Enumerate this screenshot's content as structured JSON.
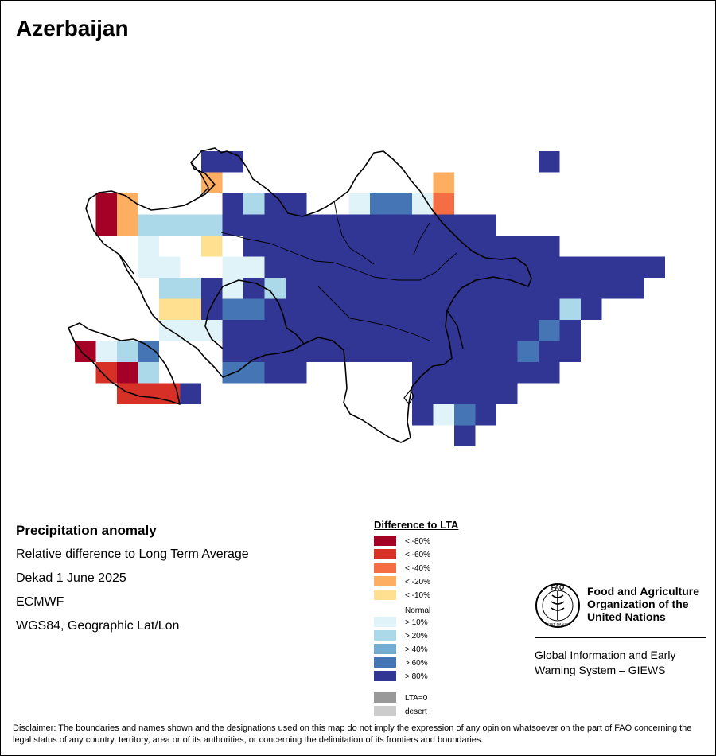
{
  "title": "Azerbaijan",
  "info": {
    "heading": "Precipitation anomaly",
    "line1": "Relative difference to Long Term Average",
    "line2": "Dekad 1 June 2025",
    "line3": "ECMWF",
    "line4": "WGS84, Geographic Lat/Lon"
  },
  "legend": {
    "title": "Difference to LTA",
    "classes": [
      {
        "label": "< -80%",
        "color": "#a50026"
      },
      {
        "label": "< -60%",
        "color": "#d73027"
      },
      {
        "label": "< -40%",
        "color": "#f46d43"
      },
      {
        "label": "< -20%",
        "color": "#fdae61"
      },
      {
        "label": "< -10%",
        "color": "#fee090"
      },
      {
        "label": "Normal",
        "color": "#ffffff"
      },
      {
        "label": "> 10%",
        "color": "#e0f3f8"
      },
      {
        "label": "> 20%",
        "color": "#abd9e9"
      },
      {
        "label": "> 40%",
        "color": "#74add1"
      },
      {
        "label": "> 60%",
        "color": "#4575b4"
      },
      {
        "label": "> 80%",
        "color": "#313695"
      }
    ],
    "extra": [
      {
        "label": "LTA=0",
        "color": "#999999"
      },
      {
        "label": "desert",
        "color": "#cccccc"
      }
    ]
  },
  "fao": {
    "org_line1": "Food and Agriculture",
    "org_line2": "Organization of the",
    "org_line3": "United Nations",
    "giews_line1": "Global Information and Early",
    "giews_line2": "Warning System – GIEWS",
    "logo_text": "FAO",
    "logo_motto": "FIAT PANIS"
  },
  "disclaimer": "Disclaimer: The boundaries and names shown and the designations used on this map do not imply the expression of any opinion whatsoever on the part of FAO concerning the legal status of any country, territory, area or of its authorities, or concerning the delimitation of its frontiers and boundaries."
}
